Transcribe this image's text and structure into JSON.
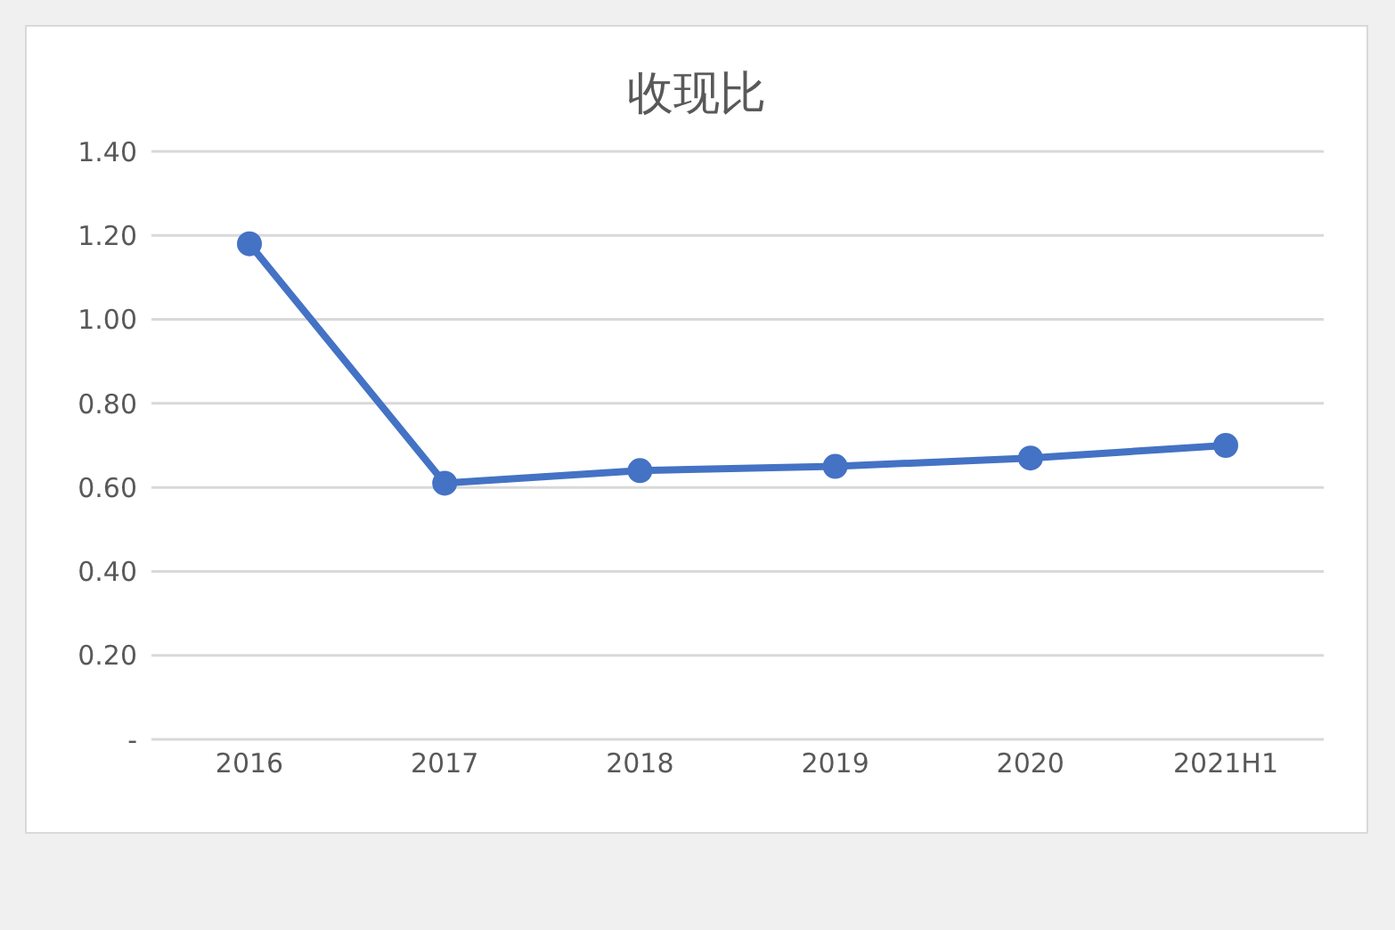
{
  "chart_data": {
    "type": "line",
    "title": "收现比",
    "categories": [
      "2016",
      "2017",
      "2018",
      "2019",
      "2020",
      "2021H1"
    ],
    "series": [
      {
        "color": "#4472c4",
        "values": [
          1.18,
          0.61,
          0.64,
          0.65,
          0.67,
          0.7
        ]
      }
    ],
    "ylim": [
      0,
      1.4
    ],
    "yticks": [
      {
        "value": 0,
        "label": "-"
      },
      {
        "value": 0.2,
        "label": "0.20"
      },
      {
        "value": 0.4,
        "label": "0.40"
      },
      {
        "value": 0.6,
        "label": "0.60"
      },
      {
        "value": 0.8,
        "label": "0.80"
      },
      {
        "value": 1.0,
        "label": "1.00"
      },
      {
        "value": 1.2,
        "label": "1.20"
      },
      {
        "value": 1.4,
        "label": "1.40"
      }
    ],
    "grid": "y",
    "marker": "circle",
    "line_style": "solid",
    "legend": false
  }
}
